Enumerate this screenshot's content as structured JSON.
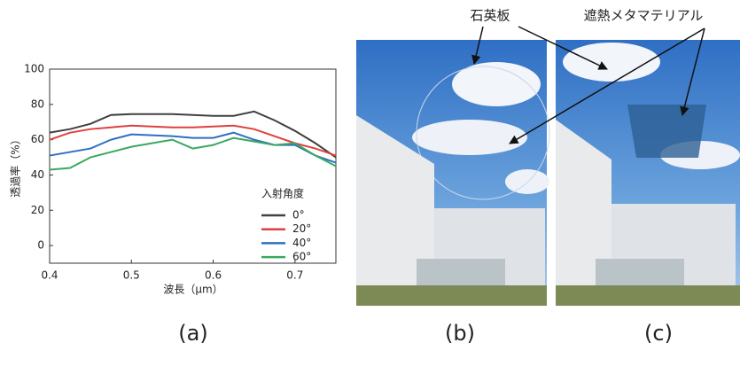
{
  "chart_data": {
    "type": "line",
    "x_label": "波長（μm）",
    "y_label": "透過率（%）",
    "legend_title": "入射角度",
    "x": [
      0.4,
      0.425,
      0.45,
      0.475,
      0.5,
      0.525,
      0.55,
      0.575,
      0.6,
      0.625,
      0.65,
      0.675,
      0.7,
      0.725,
      0.75
    ],
    "series": [
      {
        "name": "0°",
        "color": "#404040",
        "values": [
          64,
          66,
          69,
          74,
          74.5,
          74.5,
          74.5,
          74,
          73.5,
          73.5,
          76,
          71,
          65,
          58,
          50
        ]
      },
      {
        "name": "20°",
        "color": "#e04040",
        "values": [
          60,
          64,
          66,
          67,
          68,
          67.5,
          67,
          67,
          67.5,
          68,
          66,
          62,
          58,
          55,
          51
        ]
      },
      {
        "name": "40°",
        "color": "#2f6fc0",
        "values": [
          51,
          53,
          55,
          60,
          63,
          62.5,
          62,
          61,
          61,
          64,
          60,
          57,
          57,
          51,
          47
        ]
      },
      {
        "name": "60°",
        "color": "#3aa860",
        "values": [
          43,
          44,
          50,
          53,
          56,
          58,
          60,
          55,
          57,
          61,
          59,
          57,
          58,
          51,
          45
        ]
      }
    ],
    "xlim": [
      0.4,
      0.75
    ],
    "xticks": [
      0.4,
      0.5,
      0.6,
      0.7
    ],
    "ylim": [
      -10,
      100
    ],
    "yticks": [
      0,
      20,
      40,
      60,
      80,
      100
    ]
  },
  "panels": [
    "(a)",
    "(b)",
    "(c)"
  ],
  "annotations": [
    "石英板",
    "遮熱メタマテリアル"
  ]
}
